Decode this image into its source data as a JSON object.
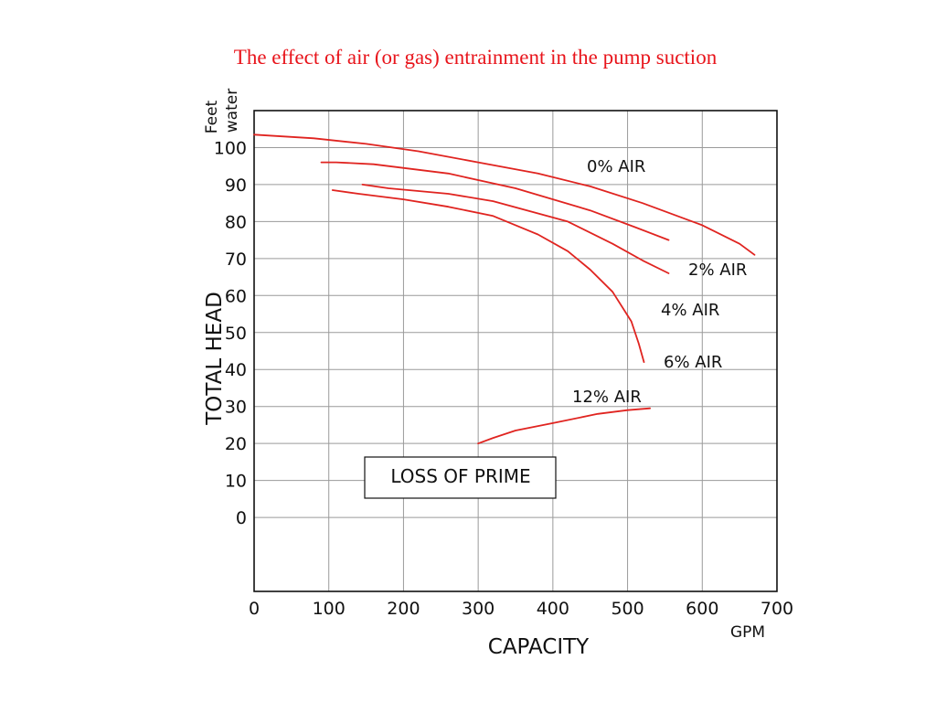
{
  "title": "The effect of air (or gas) entrainment in the pump suction",
  "colors": {
    "title": "#e8141b",
    "curve": "#e02420"
  },
  "chart_data": {
    "type": "line",
    "xlabel": "CAPACITY",
    "xunit": "GPM",
    "ylabel": "TOTAL HEAD",
    "yunit": "Feet water",
    "xlim": [
      0,
      700
    ],
    "ylim": [
      -20,
      110
    ],
    "grid": true,
    "x_ticks": [
      0,
      100,
      200,
      300,
      400,
      500,
      600,
      700
    ],
    "y_ticks": [
      0,
      10,
      20,
      30,
      40,
      50,
      60,
      70,
      80,
      90,
      100
    ],
    "annotation": "LOSS OF PRIME",
    "series": [
      {
        "name": "0% AIR",
        "points": [
          [
            0,
            103.5
          ],
          [
            80,
            102.5
          ],
          [
            150,
            101
          ],
          [
            220,
            99
          ],
          [
            300,
            96
          ],
          [
            380,
            93
          ],
          [
            450,
            89.5
          ],
          [
            520,
            85
          ],
          [
            600,
            79
          ],
          [
            650,
            74
          ],
          [
            670,
            71
          ]
        ]
      },
      {
        "name": "2% AIR",
        "points": [
          [
            90,
            96
          ],
          [
            110,
            96
          ],
          [
            160,
            95.5
          ],
          [
            260,
            93
          ],
          [
            350,
            89
          ],
          [
            450,
            83
          ],
          [
            510,
            78.5
          ],
          [
            555,
            75
          ]
        ]
      },
      {
        "name": "4% AIR",
        "points": [
          [
            145,
            90
          ],
          [
            180,
            89
          ],
          [
            260,
            87.5
          ],
          [
            320,
            85.5
          ],
          [
            420,
            80
          ],
          [
            480,
            74
          ],
          [
            520,
            69.5
          ],
          [
            555,
            66
          ]
        ]
      },
      {
        "name": "6% AIR",
        "points": [
          [
            105,
            88.5
          ],
          [
            140,
            87.5
          ],
          [
            200,
            86
          ],
          [
            260,
            84
          ],
          [
            320,
            81.5
          ],
          [
            380,
            76.5
          ],
          [
            420,
            72
          ],
          [
            450,
            67
          ],
          [
            480,
            61
          ],
          [
            505,
            53
          ],
          [
            515,
            47
          ],
          [
            522,
            42
          ]
        ]
      },
      {
        "name": "12% AIR",
        "points": [
          [
            300,
            20
          ],
          [
            320,
            21.5
          ],
          [
            350,
            23.5
          ],
          [
            400,
            25.5
          ],
          [
            460,
            28
          ],
          [
            500,
            29
          ],
          [
            530,
            29.5
          ]
        ]
      }
    ]
  }
}
